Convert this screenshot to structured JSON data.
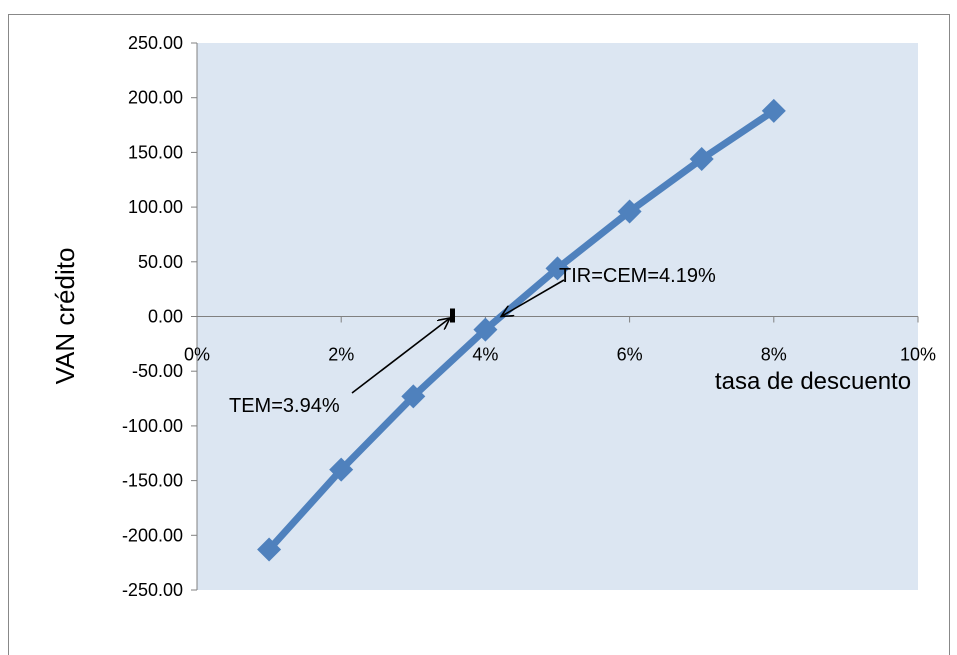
{
  "chart_data": {
    "type": "line",
    "title": "",
    "xlabel": "tasa de descuento",
    "ylabel": "VAN crédito",
    "xlim": [
      0,
      0.1
    ],
    "ylim": [
      -250,
      250
    ],
    "grid": false,
    "legend": "none",
    "x_ticks": [
      {
        "value": 0.0,
        "label": "0%"
      },
      {
        "value": 0.02,
        "label": "2%"
      },
      {
        "value": 0.04,
        "label": "4%"
      },
      {
        "value": 0.06,
        "label": "6%"
      },
      {
        "value": 0.08,
        "label": "8%"
      },
      {
        "value": 0.1,
        "label": "10%"
      }
    ],
    "y_ticks": [
      {
        "value": 250,
        "label": "250.00"
      },
      {
        "value": 200,
        "label": "200.00"
      },
      {
        "value": 150,
        "label": "150.00"
      },
      {
        "value": 100,
        "label": "100.00"
      },
      {
        "value": 50,
        "label": "50.00"
      },
      {
        "value": 0,
        "label": "0.00"
      },
      {
        "value": -50,
        "label": "-50.00"
      },
      {
        "value": -100,
        "label": "-100.00"
      },
      {
        "value": -150,
        "label": "-150.00"
      },
      {
        "value": -200,
        "label": "-200.00"
      },
      {
        "value": -250,
        "label": "-250.00"
      }
    ],
    "series": [
      {
        "x": [
          0.01,
          0.02,
          0.03,
          0.04,
          0.05,
          0.06,
          0.07,
          0.08
        ],
        "y": [
          -213,
          -140,
          -73,
          -12,
          44,
          96,
          144,
          188
        ],
        "color": "#4F81BD"
      }
    ],
    "annotations": [
      {
        "text": "TIR=CEM=4.19%",
        "x": 0.0419,
        "y": 0
      },
      {
        "text": "TEM=3.94%",
        "x": 0.0394,
        "y": 0
      }
    ],
    "colors": {
      "plot_background": "#DCE6F2",
      "line": "#4F81BD",
      "axis": "#808080"
    }
  }
}
